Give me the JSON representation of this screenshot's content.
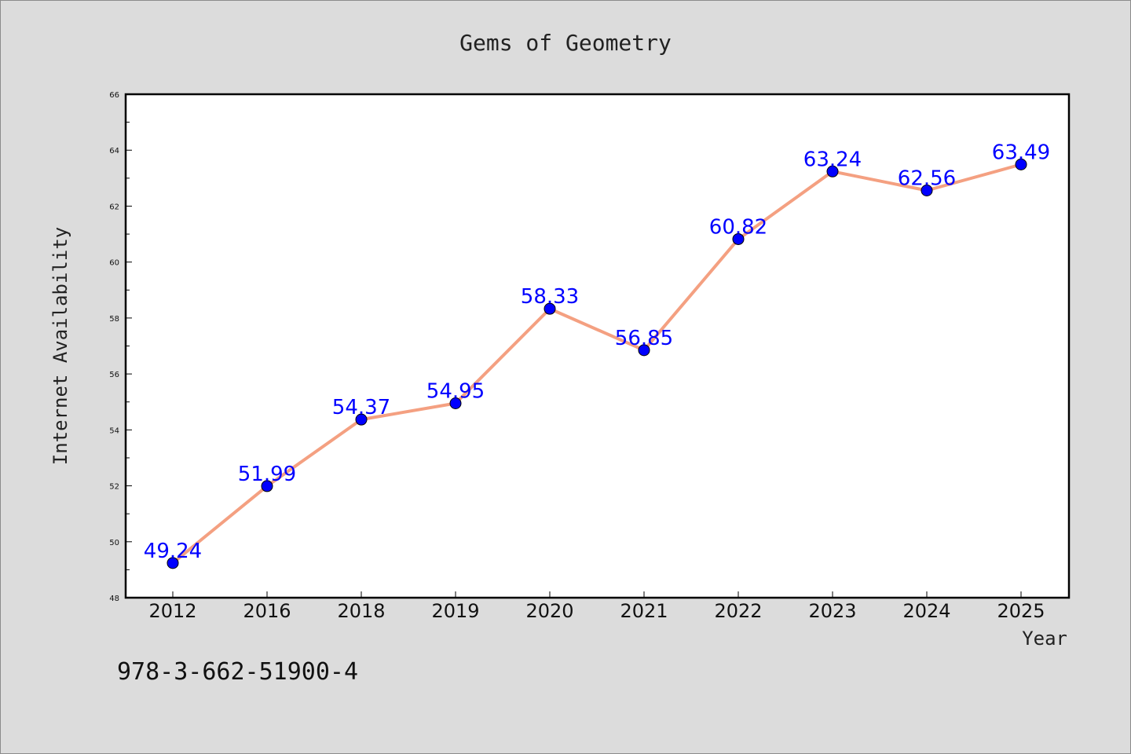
{
  "footer": {
    "isbn": "978-3-662-51900-4"
  },
  "colors": {
    "background": "#dcdcdc",
    "plot_area": "#ffffff",
    "line": "#f4a081",
    "marker": "#0000ff",
    "data_label": "#0000ff"
  },
  "chart_data": {
    "type": "line",
    "title": "Gems of Geometry",
    "xlabel": "Year",
    "ylabel": "Internet Availability",
    "categories": [
      "2012",
      "2016",
      "2018",
      "2019",
      "2020",
      "2021",
      "2022",
      "2023",
      "2024",
      "2025"
    ],
    "series": [
      {
        "values": [
          49.24,
          51.99,
          54.37,
          54.95,
          58.33,
          56.85,
          60.82,
          63.24,
          62.56,
          63.49
        ],
        "data_labels": [
          "49.24",
          "51.99",
          "54.37",
          "54.95",
          "58.33",
          "56.85",
          "60.82",
          "63.24",
          "62.56",
          "63.49"
        ]
      }
    ],
    "ylim": [
      48,
      66
    ],
    "yticks": [
      48,
      50,
      52,
      54,
      56,
      58,
      60,
      62,
      64,
      66
    ],
    "ytick_labels": [
      "48",
      "50",
      "52",
      "54",
      "56",
      "58",
      "60",
      "62",
      "64",
      "66"
    ],
    "grid": false,
    "legend": "none"
  }
}
